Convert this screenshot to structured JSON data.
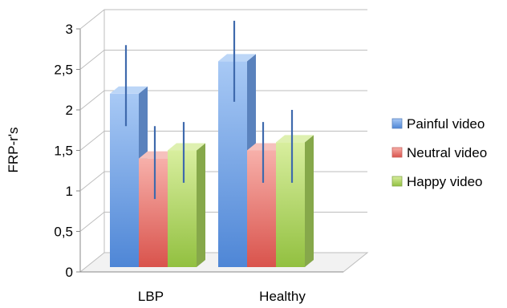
{
  "chart_data": {
    "type": "bar",
    "title": "",
    "xlabel": "",
    "ylabel": "FRP-r's",
    "ylim": [
      0,
      3
    ],
    "yticks": [
      "0",
      "0,5",
      "1",
      "1,5",
      "2",
      "2,5",
      "3"
    ],
    "ytick_values": [
      0,
      0.5,
      1,
      1.5,
      2,
      2.5,
      3
    ],
    "categories": [
      "LBP",
      "Healthy"
    ],
    "series": [
      {
        "name": "Painful video",
        "values": [
          2.2,
          2.6
        ],
        "error_low": [
          1.8,
          2.1
        ],
        "error_high": [
          2.8,
          3.1
        ],
        "color": "#6fa0e6"
      },
      {
        "name": "Neutral video",
        "values": [
          1.4,
          1.5
        ],
        "error_low": [
          0.9,
          1.1
        ],
        "error_high": [
          1.8,
          1.85
        ],
        "color": "#ee8079"
      },
      {
        "name": "Happy video",
        "values": [
          1.5,
          1.6
        ],
        "error_low": [
          1.1,
          1.1
        ],
        "error_high": [
          1.85,
          2.0
        ],
        "color": "#b2d56b"
      }
    ],
    "grid": true,
    "legend_position": "right",
    "error_bar_color": "#3f6aad"
  }
}
